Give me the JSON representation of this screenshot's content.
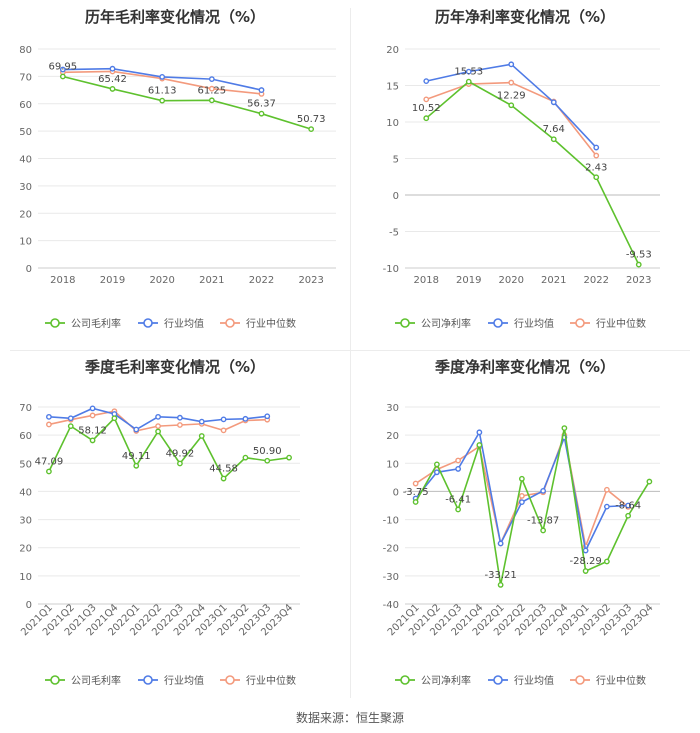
{
  "source": "数据来源：恒生聚源",
  "colors": {
    "company": "#5ec12e",
    "avg": "#4f7be6",
    "median": "#f39a7d",
    "axis": "#666666",
    "grid": "#e9e9e9"
  },
  "chart_data": [
    {
      "id": "c1",
      "type": "line",
      "title": "历年毛利率变化情况（%）",
      "categories": [
        "2018",
        "2019",
        "2020",
        "2021",
        "2022",
        "2023"
      ],
      "ylim": [
        0,
        80
      ],
      "yticks": [
        0,
        10,
        20,
        30,
        40,
        50,
        60,
        70,
        80
      ],
      "rotate_x": false,
      "legend": [
        "公司毛利率",
        "行业均值",
        "行业中位数"
      ],
      "series": [
        {
          "name": "公司毛利率",
          "key": "company",
          "values": [
            69.95,
            65.42,
            61.13,
            61.25,
            56.37,
            50.73
          ]
        },
        {
          "name": "行业均值",
          "key": "avg",
          "values": [
            72.5,
            72.8,
            69.8,
            69.0,
            65.0,
            null
          ]
        },
        {
          "name": "行业中位数",
          "key": "median",
          "values": [
            71.5,
            71.8,
            69.2,
            65.5,
            63.6,
            null
          ]
        }
      ],
      "labels": [
        {
          "i": 0,
          "text": "69.95"
        },
        {
          "i": 1,
          "text": "65.42"
        },
        {
          "i": 2,
          "text": "61.13"
        },
        {
          "i": 3,
          "text": "61.25"
        },
        {
          "i": 4,
          "text": "56.37"
        },
        {
          "i": 5,
          "text": "50.73"
        }
      ]
    },
    {
      "id": "c2",
      "type": "line",
      "title": "历年净利率变化情况（%）",
      "categories": [
        "2018",
        "2019",
        "2020",
        "2021",
        "2022",
        "2023"
      ],
      "ylim": [
        -10,
        20
      ],
      "yticks": [
        -10,
        -5,
        0,
        5,
        10,
        15,
        20
      ],
      "rotate_x": false,
      "legend": [
        "公司净利率",
        "行业均值",
        "行业中位数"
      ],
      "series": [
        {
          "name": "公司净利率",
          "key": "company",
          "values": [
            10.52,
            15.53,
            12.29,
            7.64,
            2.43,
            -9.53
          ]
        },
        {
          "name": "行业均值",
          "key": "avg",
          "values": [
            15.6,
            16.9,
            17.9,
            12.7,
            6.5,
            null
          ]
        },
        {
          "name": "行业中位数",
          "key": "median",
          "values": [
            13.1,
            15.2,
            15.4,
            12.8,
            5.4,
            null
          ]
        }
      ],
      "labels": [
        {
          "i": 0,
          "text": "10.52"
        },
        {
          "i": 1,
          "text": "15.53"
        },
        {
          "i": 2,
          "text": "12.29"
        },
        {
          "i": 3,
          "text": "7.64"
        },
        {
          "i": 4,
          "text": "2.43"
        },
        {
          "i": 5,
          "text": "-9.53"
        }
      ]
    },
    {
      "id": "c3",
      "type": "line",
      "title": "季度毛利率变化情况（%）",
      "categories": [
        "2021Q1",
        "2021Q2",
        "2021Q3",
        "2021Q4",
        "2022Q1",
        "2022Q2",
        "2022Q3",
        "2022Q4",
        "2023Q1",
        "2023Q2",
        "2023Q3",
        "2023Q4"
      ],
      "ylim": [
        0,
        70
      ],
      "yticks": [
        0,
        10,
        20,
        30,
        40,
        50,
        60,
        70
      ],
      "rotate_x": true,
      "legend": [
        "公司毛利率",
        "行业均值",
        "行业中位数"
      ],
      "series": [
        {
          "name": "公司毛利率",
          "key": "company",
          "values": [
            47.09,
            63.2,
            58.12,
            66.0,
            49.11,
            61.3,
            49.92,
            59.7,
            44.58,
            52.0,
            50.9,
            52.0
          ]
        },
        {
          "name": "行业均值",
          "key": "avg",
          "values": [
            66.5,
            66.0,
            69.5,
            67.5,
            62.0,
            66.5,
            66.2,
            64.8,
            65.6,
            65.8,
            66.7,
            null
          ]
        },
        {
          "name": "行业中位数",
          "key": "median",
          "values": [
            63.8,
            65.5,
            67.0,
            68.5,
            61.5,
            63.2,
            63.6,
            64.0,
            61.7,
            65.2,
            65.5,
            null
          ]
        }
      ],
      "labels": [
        {
          "i": 0,
          "text": "47.09"
        },
        {
          "i": 2,
          "text": "58.12"
        },
        {
          "i": 4,
          "text": "49.11"
        },
        {
          "i": 6,
          "text": "49.92"
        },
        {
          "i": 8,
          "text": "44.58"
        },
        {
          "i": 10,
          "text": "50.90"
        }
      ]
    },
    {
      "id": "c4",
      "type": "line",
      "title": "季度净利率变化情况（%）",
      "categories": [
        "2021Q1",
        "2021Q2",
        "2021Q3",
        "2021Q4",
        "2022Q1",
        "2022Q2",
        "2022Q3",
        "2022Q4",
        "2023Q1",
        "2023Q2",
        "2023Q3",
        "2023Q4"
      ],
      "ylim": [
        -40,
        30
      ],
      "yticks": [
        -40,
        -30,
        -20,
        -10,
        0,
        10,
        20,
        30
      ],
      "rotate_x": true,
      "legend": [
        "公司净利率",
        "行业均值",
        "行业中位数"
      ],
      "series": [
        {
          "name": "公司净利率",
          "key": "company",
          "values": [
            -3.75,
            9.6,
            -6.41,
            16.5,
            -33.21,
            4.5,
            -13.87,
            22.5,
            -28.29,
            -24.9,
            -8.64,
            3.5
          ]
        },
        {
          "name": "行业均值",
          "key": "avg",
          "values": [
            -2.5,
            6.8,
            8.0,
            21.0,
            -18.5,
            -3.8,
            0.2,
            19.2,
            -21.0,
            -5.4,
            -5.0,
            null
          ]
        },
        {
          "name": "行业中位数",
          "key": "median",
          "values": [
            2.8,
            7.8,
            11.0,
            16.0,
            -18.5,
            -1.6,
            -0.3,
            20.0,
            -19.5,
            0.6,
            -5.5,
            null
          ]
        }
      ],
      "labels": [
        {
          "i": 0,
          "text": "-3.75"
        },
        {
          "i": 2,
          "text": "-6.41"
        },
        {
          "i": 4,
          "text": "-33.21"
        },
        {
          "i": 6,
          "text": "-13.87"
        },
        {
          "i": 8,
          "text": "-28.29"
        },
        {
          "i": 10,
          "text": "-8.64"
        }
      ]
    }
  ]
}
